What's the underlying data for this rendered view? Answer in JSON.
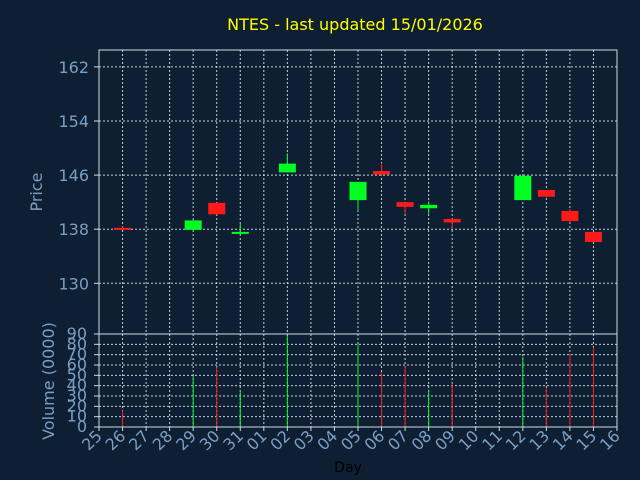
{
  "chart_data": [
    {
      "type": "candlestick",
      "title": "NTES - last updated 15/01/2026",
      "ylabel": "Price",
      "xlim": [
        25,
        16
      ],
      "ylim": [
        122.5,
        164.5
      ],
      "yticks": [
        130,
        138,
        146,
        154,
        162
      ],
      "grid": true,
      "colors": {
        "up": "#00ff22",
        "down": "#ff1a1a",
        "background": "#0f1f33",
        "axes": "#cfd8e3",
        "grid": "#e6eef7",
        "title": "#ffff00",
        "tick": "#7a9fc4"
      },
      "candles": [
        {
          "day": "26",
          "open": 138.2,
          "high": 138.4,
          "low": 137.9,
          "close": 138.0
        },
        {
          "day": "29",
          "open": 137.9,
          "high": 139.4,
          "low": 137.7,
          "close": 139.3
        },
        {
          "day": "30",
          "open": 141.9,
          "high": 141.9,
          "low": 140.2,
          "close": 140.2
        },
        {
          "day": "31",
          "open": 137.3,
          "high": 138.9,
          "low": 137.1,
          "close": 137.6
        },
        {
          "day": "02",
          "open": 146.4,
          "high": 149.2,
          "low": 146.4,
          "close": 147.7
        },
        {
          "day": "05",
          "open": 142.3,
          "high": 145.0,
          "low": 140.7,
          "close": 145.0
        },
        {
          "day": "06",
          "open": 146.6,
          "high": 147.8,
          "low": 145.9,
          "close": 146.1
        },
        {
          "day": "07",
          "open": 142.0,
          "high": 142.1,
          "low": 140.3,
          "close": 141.3
        },
        {
          "day": "08",
          "open": 141.1,
          "high": 142.1,
          "low": 140.3,
          "close": 141.6
        },
        {
          "day": "09",
          "open": 139.5,
          "high": 139.5,
          "low": 138.1,
          "close": 139.0
        },
        {
          "day": "12",
          "open": 142.3,
          "high": 146.1,
          "low": 142.3,
          "close": 145.9
        },
        {
          "day": "13",
          "open": 143.8,
          "high": 143.8,
          "low": 142.7,
          "close": 142.8
        },
        {
          "day": "14",
          "open": 140.7,
          "high": 141.0,
          "low": 139.0,
          "close": 139.2
        },
        {
          "day": "15",
          "open": 137.6,
          "high": 137.6,
          "low": 136.1,
          "close": 136.1
        }
      ]
    },
    {
      "type": "bar",
      "ylabel": "Volume (0000)",
      "xlabel": "Day",
      "ylim": [
        0,
        90
      ],
      "yticks": [
        0,
        10,
        20,
        30,
        40,
        50,
        60,
        70,
        80,
        90
      ],
      "categories": [
        "25",
        "26",
        "27",
        "28",
        "29",
        "30",
        "31",
        "01",
        "02",
        "03",
        "04",
        "05",
        "06",
        "07",
        "08",
        "09",
        "10",
        "11",
        "12",
        "13",
        "14",
        "15",
        "16"
      ],
      "bars": [
        {
          "day": "26",
          "value": 16,
          "dir": "down"
        },
        {
          "day": "29",
          "value": 50,
          "dir": "up"
        },
        {
          "day": "30",
          "value": 58,
          "dir": "down"
        },
        {
          "day": "31",
          "value": 36,
          "dir": "up"
        },
        {
          "day": "02",
          "value": 88,
          "dir": "up"
        },
        {
          "day": "05",
          "value": 80,
          "dir": "up"
        },
        {
          "day": "06",
          "value": 53,
          "dir": "down"
        },
        {
          "day": "07",
          "value": 59,
          "dir": "down"
        },
        {
          "day": "08",
          "value": 36,
          "dir": "up"
        },
        {
          "day": "09",
          "value": 42,
          "dir": "down"
        },
        {
          "day": "12",
          "value": 68,
          "dir": "up"
        },
        {
          "day": "13",
          "value": 38,
          "dir": "down"
        },
        {
          "day": "14",
          "value": 71,
          "dir": "down"
        },
        {
          "day": "15",
          "value": 77,
          "dir": "down"
        }
      ]
    }
  ]
}
